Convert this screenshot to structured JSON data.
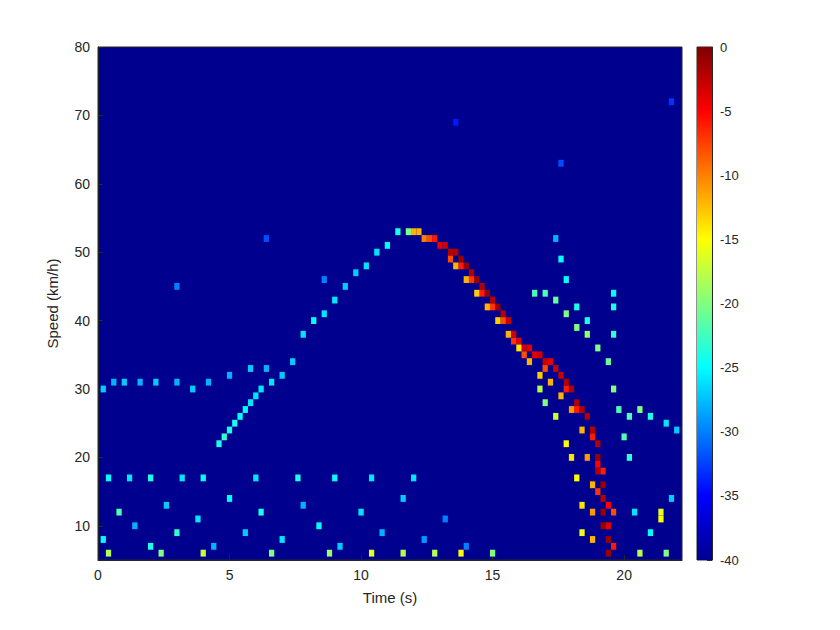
{
  "chart_data": {
    "type": "heatmap",
    "xlabel": "Time (s)",
    "ylabel": "Speed (km/h)",
    "xlim": [
      0,
      22.2
    ],
    "ylim": [
      5,
      80
    ],
    "xticks": [
      0,
      5,
      10,
      15,
      20
    ],
    "yticks": [
      10,
      20,
      30,
      40,
      50,
      60,
      70,
      80
    ],
    "grid": false,
    "cell_width": 0.2,
    "cell_height": 1,
    "colorbar_range": [
      -40,
      0
    ],
    "colorbar_ticks": [
      -40,
      -35,
      -30,
      -25,
      -20,
      -15,
      -10,
      -5,
      0
    ],
    "cells": [
      [
        0.2,
        30,
        -27
      ],
      [
        0.6,
        31,
        -28
      ],
      [
        1.0,
        31,
        -27
      ],
      [
        1.6,
        31,
        -28
      ],
      [
        2.2,
        31,
        -27
      ],
      [
        3.0,
        31,
        -28
      ],
      [
        3.6,
        30,
        -27
      ],
      [
        4.2,
        31,
        -28
      ],
      [
        5.0,
        32,
        -28
      ],
      [
        5.8,
        33,
        -27
      ],
      [
        6.4,
        33,
        -28
      ],
      [
        4.6,
        22,
        -24
      ],
      [
        4.8,
        23,
        -23
      ],
      [
        5.0,
        24,
        -24
      ],
      [
        5.2,
        25,
        -24
      ],
      [
        5.4,
        26,
        -25
      ],
      [
        5.6,
        27,
        -25
      ],
      [
        5.8,
        28,
        -26
      ],
      [
        6.0,
        29,
        -26
      ],
      [
        6.2,
        30,
        -26
      ],
      [
        6.6,
        31,
        -26
      ],
      [
        7.0,
        32,
        -27
      ],
      [
        7.4,
        34,
        -27
      ],
      [
        7.8,
        38,
        -26
      ],
      [
        8.2,
        40,
        -25
      ],
      [
        8.6,
        41,
        -26
      ],
      [
        9.0,
        43,
        -26
      ],
      [
        9.4,
        45,
        -27
      ],
      [
        9.8,
        47,
        -27
      ],
      [
        10.2,
        48,
        -26
      ],
      [
        10.6,
        50,
        -26
      ],
      [
        11.0,
        51,
        -25
      ],
      [
        11.4,
        53,
        -24
      ],
      [
        11.8,
        53,
        -20
      ],
      [
        12.0,
        53,
        -12
      ],
      [
        12.2,
        53,
        -12
      ],
      [
        12.4,
        52,
        -10
      ],
      [
        12.6,
        52,
        -8
      ],
      [
        12.8,
        52,
        -6
      ],
      [
        13.0,
        51,
        -4
      ],
      [
        13.2,
        51,
        -3
      ],
      [
        13.4,
        50,
        -2
      ],
      [
        13.6,
        50,
        -2
      ],
      [
        13.8,
        49,
        -1
      ],
      [
        14.0,
        48,
        -1
      ],
      [
        14.2,
        47,
        -2
      ],
      [
        14.4,
        46,
        -1
      ],
      [
        14.6,
        45,
        -2
      ],
      [
        14.8,
        44,
        -1
      ],
      [
        15.0,
        43,
        -2
      ],
      [
        15.2,
        42,
        -1
      ],
      [
        15.4,
        41,
        -2
      ],
      [
        15.6,
        40,
        -3
      ],
      [
        15.8,
        38,
        -3
      ],
      [
        16.0,
        37,
        -4
      ],
      [
        16.2,
        36,
        -3
      ],
      [
        16.4,
        36,
        -4
      ],
      [
        16.6,
        35,
        -4
      ],
      [
        16.8,
        35,
        -3
      ],
      [
        17.0,
        34,
        -3
      ],
      [
        17.2,
        34,
        -4
      ],
      [
        17.4,
        33,
        -3
      ],
      [
        17.6,
        32,
        -3
      ],
      [
        17.8,
        31,
        -2
      ],
      [
        18.0,
        30,
        -2
      ],
      [
        18.2,
        28,
        -2
      ],
      [
        18.4,
        27,
        -2
      ],
      [
        18.6,
        26,
        -2
      ],
      [
        18.8,
        24,
        -2
      ],
      [
        19.0,
        22,
        -2
      ],
      [
        19.0,
        20,
        -1
      ],
      [
        19.0,
        18,
        -2
      ],
      [
        19.2,
        16,
        -1
      ],
      [
        19.2,
        14,
        -2
      ],
      [
        19.2,
        12,
        -1
      ],
      [
        19.2,
        10,
        -1
      ],
      [
        19.4,
        8,
        -1
      ],
      [
        19.4,
        6,
        -1
      ],
      [
        13.4,
        49,
        -8
      ],
      [
        13.8,
        48,
        -6
      ],
      [
        14.2,
        46,
        -7
      ],
      [
        14.6,
        44,
        -6
      ],
      [
        15.0,
        42,
        -7
      ],
      [
        15.4,
        40,
        -8
      ],
      [
        15.8,
        37,
        -7
      ],
      [
        16.2,
        35,
        -8
      ],
      [
        17.0,
        33,
        -8
      ],
      [
        17.8,
        30,
        -6
      ],
      [
        18.2,
        27,
        -6
      ],
      [
        18.8,
        23,
        -6
      ],
      [
        19.0,
        19,
        -5
      ],
      [
        19.4,
        13,
        -5
      ],
      [
        19.4,
        10,
        -4
      ],
      [
        19.6,
        7,
        -6
      ],
      [
        19.6,
        12,
        -8
      ],
      [
        19.0,
        15,
        -7
      ],
      [
        19.2,
        18,
        -6
      ],
      [
        13.6,
        48,
        -12
      ],
      [
        14.0,
        46,
        -12
      ],
      [
        14.4,
        44,
        -13
      ],
      [
        14.8,
        42,
        -12
      ],
      [
        15.2,
        40,
        -13
      ],
      [
        15.6,
        38,
        -12
      ],
      [
        16.0,
        36,
        -14
      ],
      [
        16.4,
        34,
        -12
      ],
      [
        16.8,
        32,
        -13
      ],
      [
        17.2,
        31,
        -12
      ],
      [
        17.6,
        29,
        -12
      ],
      [
        18.0,
        27,
        -11
      ],
      [
        18.4,
        24,
        -12
      ],
      [
        18.6,
        20,
        -11
      ],
      [
        18.8,
        16,
        -12
      ],
      [
        18.8,
        12,
        -11
      ],
      [
        18.8,
        8,
        -12
      ],
      [
        16.8,
        30,
        -18
      ],
      [
        17.0,
        28,
        -20
      ],
      [
        17.4,
        26,
        -17
      ],
      [
        17.8,
        22,
        -15
      ],
      [
        18.0,
        20,
        -14
      ],
      [
        18.2,
        17,
        -15
      ],
      [
        18.4,
        13,
        -14
      ],
      [
        18.4,
        9,
        -16
      ],
      [
        16.6,
        44,
        -22
      ],
      [
        17.0,
        44,
        -22
      ],
      [
        17.4,
        43,
        -21
      ],
      [
        17.8,
        41,
        -20
      ],
      [
        18.2,
        39,
        -20
      ],
      [
        18.6,
        38,
        -19
      ],
      [
        19.0,
        36,
        -20
      ],
      [
        19.4,
        34,
        -21
      ],
      [
        19.6,
        30,
        -20
      ],
      [
        19.8,
        27,
        -22
      ],
      [
        20.0,
        23,
        -22
      ],
      [
        20.2,
        20,
        -23
      ],
      [
        17.4,
        52,
        -28
      ],
      [
        17.6,
        49,
        -25
      ],
      [
        17.8,
        46,
        -25
      ],
      [
        18.2,
        42,
        -24
      ],
      [
        18.6,
        40,
        -24
      ],
      [
        19.6,
        44,
        -25
      ],
      [
        19.6,
        42,
        -24
      ],
      [
        19.6,
        38,
        -23
      ],
      [
        20.2,
        26,
        -22
      ],
      [
        20.6,
        27,
        -20
      ],
      [
        21.0,
        26,
        -24
      ],
      [
        21.6,
        25,
        -26
      ],
      [
        22.0,
        24,
        -27
      ],
      [
        21.4,
        11,
        -15
      ],
      [
        21.4,
        12,
        -16
      ],
      [
        0.4,
        17,
        -25
      ],
      [
        1.2,
        17,
        -26
      ],
      [
        2.0,
        17,
        -24
      ],
      [
        3.2,
        17,
        -26
      ],
      [
        4.0,
        17,
        -25
      ],
      [
        6.0,
        17,
        -26
      ],
      [
        7.6,
        17,
        -24
      ],
      [
        9.0,
        17,
        -25
      ],
      [
        10.4,
        17,
        -26
      ],
      [
        12.0,
        17,
        -26
      ],
      [
        0.2,
        8,
        -25
      ],
      [
        0.8,
        12,
        -22
      ],
      [
        1.4,
        10,
        -28
      ],
      [
        2.0,
        7,
        -24
      ],
      [
        2.6,
        13,
        -27
      ],
      [
        3.0,
        9,
        -23
      ],
      [
        3.8,
        11,
        -26
      ],
      [
        4.4,
        7,
        -28
      ],
      [
        5.0,
        14,
        -25
      ],
      [
        5.6,
        9,
        -27
      ],
      [
        6.2,
        12,
        -24
      ],
      [
        7.0,
        8,
        -26
      ],
      [
        7.8,
        13,
        -28
      ],
      [
        8.4,
        10,
        -25
      ],
      [
        9.2,
        7,
        -27
      ],
      [
        10.0,
        12,
        -26
      ],
      [
        10.8,
        9,
        -28
      ],
      [
        11.6,
        14,
        -27
      ],
      [
        12.4,
        8,
        -29
      ],
      [
        13.2,
        11,
        -30
      ],
      [
        14.0,
        7,
        -30
      ],
      [
        20.4,
        12,
        -26
      ],
      [
        21.0,
        9,
        -25
      ],
      [
        21.8,
        14,
        -27
      ],
      [
        0.4,
        6,
        -18
      ],
      [
        2.4,
        6,
        -20
      ],
      [
        4.0,
        6,
        -17
      ],
      [
        6.6,
        6,
        -20
      ],
      [
        8.8,
        6,
        -19
      ],
      [
        10.4,
        6,
        -16
      ],
      [
        11.6,
        6,
        -18
      ],
      [
        12.8,
        6,
        -18
      ],
      [
        13.8,
        6,
        -15
      ],
      [
        15.0,
        6,
        -20
      ],
      [
        20.6,
        6,
        -18
      ],
      [
        21.6,
        6,
        -20
      ],
      [
        3.0,
        45,
        -30
      ],
      [
        8.6,
        46,
        -30
      ],
      [
        6.4,
        52,
        -32
      ],
      [
        17.6,
        63,
        -32
      ],
      [
        21.8,
        72,
        -33
      ],
      [
        13.6,
        69,
        -34
      ]
    ]
  }
}
